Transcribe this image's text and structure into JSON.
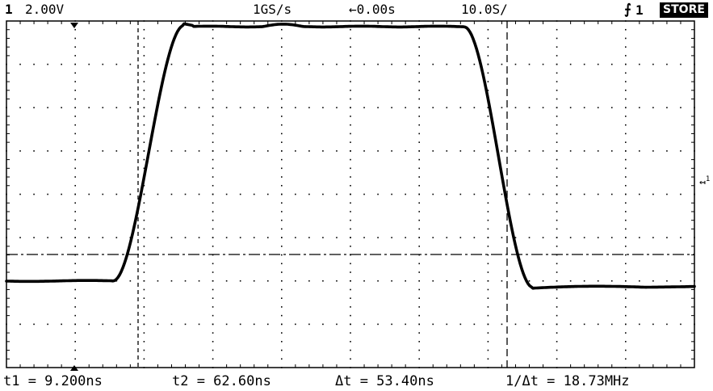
{
  "header": {
    "channel_number": "1",
    "volts_per_div": "2.00V",
    "sample_rate": "1GS/s",
    "trigger_delay": "←0.00s",
    "time_per_div": "10.0S/",
    "trigger_slope_icon": "rising-edge-icon",
    "trigger_source": "1",
    "mode_badge": "STORE"
  },
  "measurements": {
    "t1": "t1 = 9.200ns",
    "t2": "t2 = 62.60ns",
    "dt": "Δt = 53.40ns",
    "inv_dt": "1/Δt = 18.73MHz"
  },
  "ground_marker": {
    "label": "1"
  },
  "colors": {
    "background": "#ffffff",
    "trace": "#000000",
    "grid": "#000000"
  },
  "waveform": {
    "type": "pulse",
    "divisions_x": 10,
    "divisions_y": 8,
    "low_level_div": -2.0,
    "high_level_div": 3.9,
    "rise_time_div": 0.9,
    "cursor_t1_time": "9.200ns",
    "cursor_t2_time": "62.60ns",
    "trigger_level_div": -1.05
  }
}
